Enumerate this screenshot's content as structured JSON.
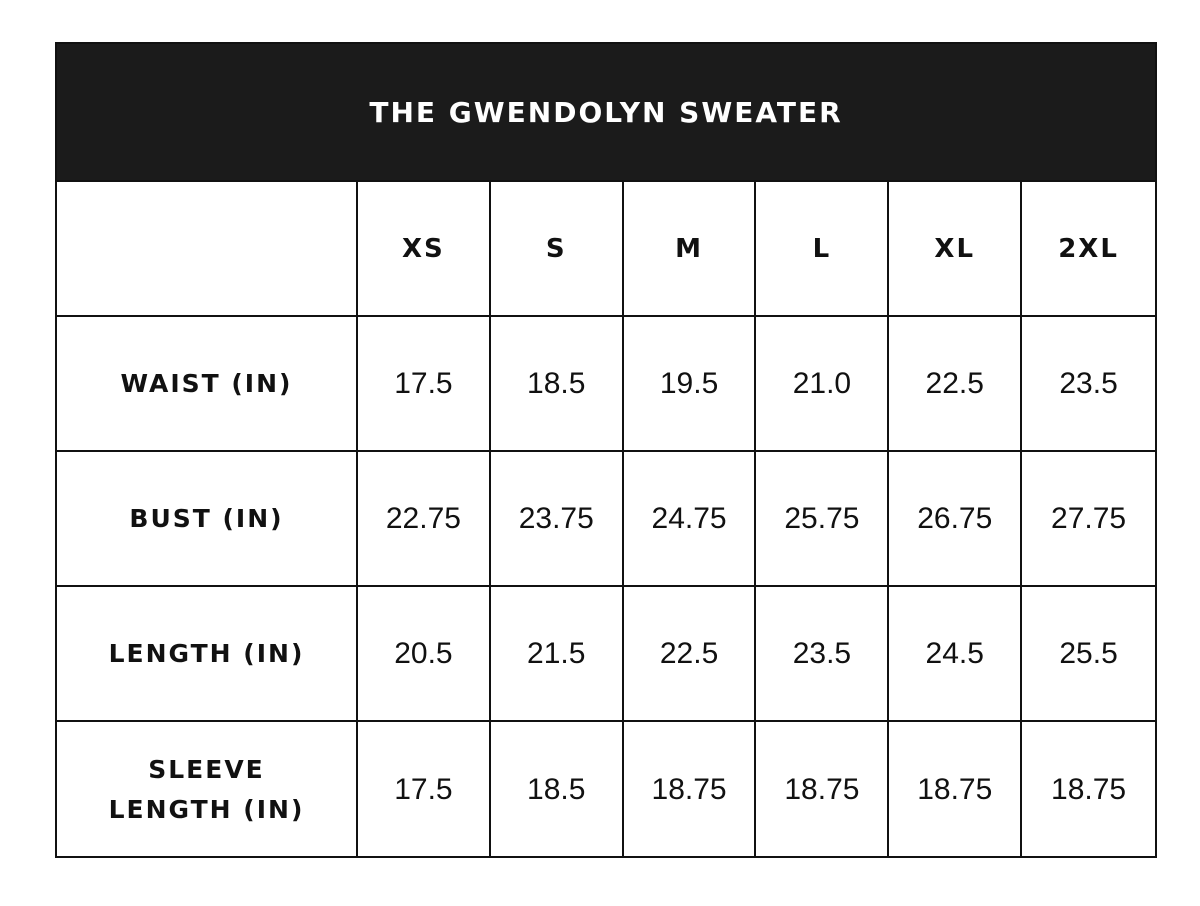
{
  "table": {
    "title": "THE GWENDOLYN SWEATER",
    "sizes": [
      "XS",
      "S",
      "M",
      "L",
      "XL",
      "2XL"
    ],
    "rows": [
      {
        "label": "WAIST (IN)",
        "values": [
          "17.5",
          "18.5",
          "19.5",
          "21.0",
          "22.5",
          "23.5"
        ]
      },
      {
        "label": "BUST (IN)",
        "values": [
          "22.75",
          "23.75",
          "24.75",
          "25.75",
          "26.75",
          "27.75"
        ]
      },
      {
        "label": "LENGTH (IN)",
        "values": [
          "20.5",
          "21.5",
          "22.5",
          "23.5",
          "24.5",
          "25.5"
        ]
      },
      {
        "label": "SLEEVE LENGTH (IN)",
        "values": [
          "17.5",
          "18.5",
          "18.75",
          "18.75",
          "18.75",
          "18.75"
        ]
      }
    ]
  }
}
